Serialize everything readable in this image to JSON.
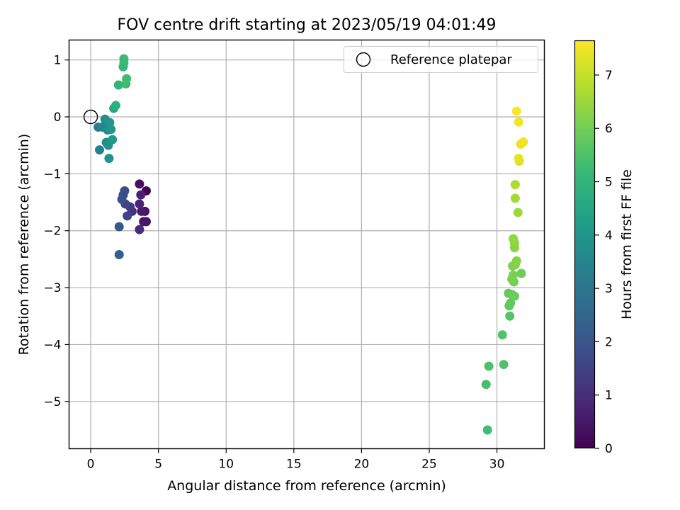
{
  "chart_data": {
    "type": "scatter",
    "title": "FOV centre drift starting at 2023/05/19 04:01:49",
    "xlabel": "Angular distance from reference (arcmin)",
    "ylabel": "Rotation from reference (arcmin)",
    "xlim": [
      -1.6,
      33.5
    ],
    "ylim": [
      -5.83,
      1.35
    ],
    "xticks": [
      0,
      5,
      10,
      15,
      20,
      25,
      30
    ],
    "yticks": [
      1,
      0,
      -1,
      -2,
      -3,
      -4,
      -5
    ],
    "ytick_labels": [
      "1",
      "0",
      "−1",
      "−2",
      "−3",
      "−4",
      "−5"
    ],
    "grid": true,
    "legend": {
      "position": "top-right",
      "entries": [
        "Reference platepar"
      ]
    },
    "reference_point": {
      "name": "Reference platepar",
      "x": 0,
      "y": 0
    },
    "colorbar": {
      "label": "Hours from first FF file",
      "range": [
        0,
        7.65
      ],
      "ticks": [
        0,
        1,
        2,
        3,
        4,
        5,
        6,
        7
      ],
      "colormap": "viridis"
    },
    "points": [
      {
        "x": 4.1,
        "y": -1.3,
        "c": 0.0
      },
      {
        "x": 3.6,
        "y": -1.18,
        "c": 0.3
      },
      {
        "x": 4.0,
        "y": -1.66,
        "c": 0.4
      },
      {
        "x": 4.1,
        "y": -1.84,
        "c": 0.45
      },
      {
        "x": 3.9,
        "y": -1.84,
        "c": 0.5
      },
      {
        "x": 3.75,
        "y": -1.66,
        "c": 0.6
      },
      {
        "x": 3.7,
        "y": -1.37,
        "c": 0.7
      },
      {
        "x": 3.6,
        "y": -1.53,
        "c": 0.8
      },
      {
        "x": 3.6,
        "y": -1.98,
        "c": 0.9
      },
      {
        "x": 3.05,
        "y": -1.66,
        "c": 1.1
      },
      {
        "x": 2.9,
        "y": -1.58,
        "c": 1.3
      },
      {
        "x": 2.7,
        "y": -1.74,
        "c": 1.5
      },
      {
        "x": 2.55,
        "y": -1.53,
        "c": 1.6
      },
      {
        "x": 2.5,
        "y": -1.3,
        "c": 1.75
      },
      {
        "x": 2.4,
        "y": -1.37,
        "c": 1.8
      },
      {
        "x": 2.3,
        "y": -1.45,
        "c": 1.9
      },
      {
        "x": 2.1,
        "y": -1.93,
        "c": 2.1
      },
      {
        "x": 2.1,
        "y": -2.42,
        "c": 2.3
      },
      {
        "x": 0.55,
        "y": -0.18,
        "c": 3.2
      },
      {
        "x": 0.65,
        "y": -0.58,
        "c": 3.4
      },
      {
        "x": 0.85,
        "y": -0.18,
        "c": 3.5
      },
      {
        "x": 1.15,
        "y": -0.45,
        "c": 3.6
      },
      {
        "x": 1.25,
        "y": -0.23,
        "c": 3.7
      },
      {
        "x": 1.05,
        "y": -0.04,
        "c": 3.8
      },
      {
        "x": 1.3,
        "y": -0.5,
        "c": 3.85
      },
      {
        "x": 1.35,
        "y": -0.73,
        "c": 3.9
      },
      {
        "x": 1.4,
        "y": -0.1,
        "c": 3.95
      },
      {
        "x": 1.5,
        "y": -0.22,
        "c": 4.0
      },
      {
        "x": 1.6,
        "y": -0.4,
        "c": 4.1
      },
      {
        "x": 1.7,
        "y": 0.15,
        "c": 4.6
      },
      {
        "x": 1.85,
        "y": 0.2,
        "c": 4.8
      },
      {
        "x": 2.05,
        "y": 0.56,
        "c": 5.0
      },
      {
        "x": 2.4,
        "y": 0.88,
        "c": 5.1
      },
      {
        "x": 2.45,
        "y": 0.95,
        "c": 5.15
      },
      {
        "x": 2.45,
        "y": 1.02,
        "c": 5.2
      },
      {
        "x": 2.6,
        "y": 0.58,
        "c": 5.25
      },
      {
        "x": 2.65,
        "y": 0.67,
        "c": 5.3
      },
      {
        "x": 29.3,
        "y": -5.5,
        "c": 5.3
      },
      {
        "x": 29.2,
        "y": -4.7,
        "c": 5.4
      },
      {
        "x": 29.4,
        "y": -4.38,
        "c": 5.45
      },
      {
        "x": 30.5,
        "y": -4.35,
        "c": 5.5
      },
      {
        "x": 30.4,
        "y": -3.83,
        "c": 5.55
      },
      {
        "x": 30.95,
        "y": -3.5,
        "c": 5.6
      },
      {
        "x": 30.9,
        "y": -3.32,
        "c": 5.7
      },
      {
        "x": 31.0,
        "y": -3.27,
        "c": 5.75
      },
      {
        "x": 30.85,
        "y": -3.1,
        "c": 5.8
      },
      {
        "x": 31.1,
        "y": -3.12,
        "c": 5.85
      },
      {
        "x": 31.3,
        "y": -3.15,
        "c": 5.9
      },
      {
        "x": 31.8,
        "y": -2.75,
        "c": 5.95
      },
      {
        "x": 31.25,
        "y": -2.9,
        "c": 6.0
      },
      {
        "x": 31.1,
        "y": -2.85,
        "c": 6.05
      },
      {
        "x": 31.2,
        "y": -2.78,
        "c": 6.1
      },
      {
        "x": 31.15,
        "y": -2.62,
        "c": 6.15
      },
      {
        "x": 31.35,
        "y": -2.6,
        "c": 6.2
      },
      {
        "x": 31.45,
        "y": -2.53,
        "c": 6.25
      },
      {
        "x": 31.3,
        "y": -2.3,
        "c": 6.3
      },
      {
        "x": 31.3,
        "y": -2.22,
        "c": 6.35
      },
      {
        "x": 31.2,
        "y": -2.14,
        "c": 6.4
      },
      {
        "x": 31.55,
        "y": -1.68,
        "c": 6.5
      },
      {
        "x": 31.35,
        "y": -1.43,
        "c": 6.6
      },
      {
        "x": 31.35,
        "y": -1.19,
        "c": 6.7
      },
      {
        "x": 31.65,
        "y": -0.78,
        "c": 7.3
      },
      {
        "x": 31.6,
        "y": -0.73,
        "c": 7.35
      },
      {
        "x": 31.75,
        "y": -0.48,
        "c": 7.4
      },
      {
        "x": 31.95,
        "y": -0.44,
        "c": 7.45
      },
      {
        "x": 31.6,
        "y": -0.09,
        "c": 7.5
      },
      {
        "x": 31.45,
        "y": 0.1,
        "c": 7.6
      }
    ]
  }
}
